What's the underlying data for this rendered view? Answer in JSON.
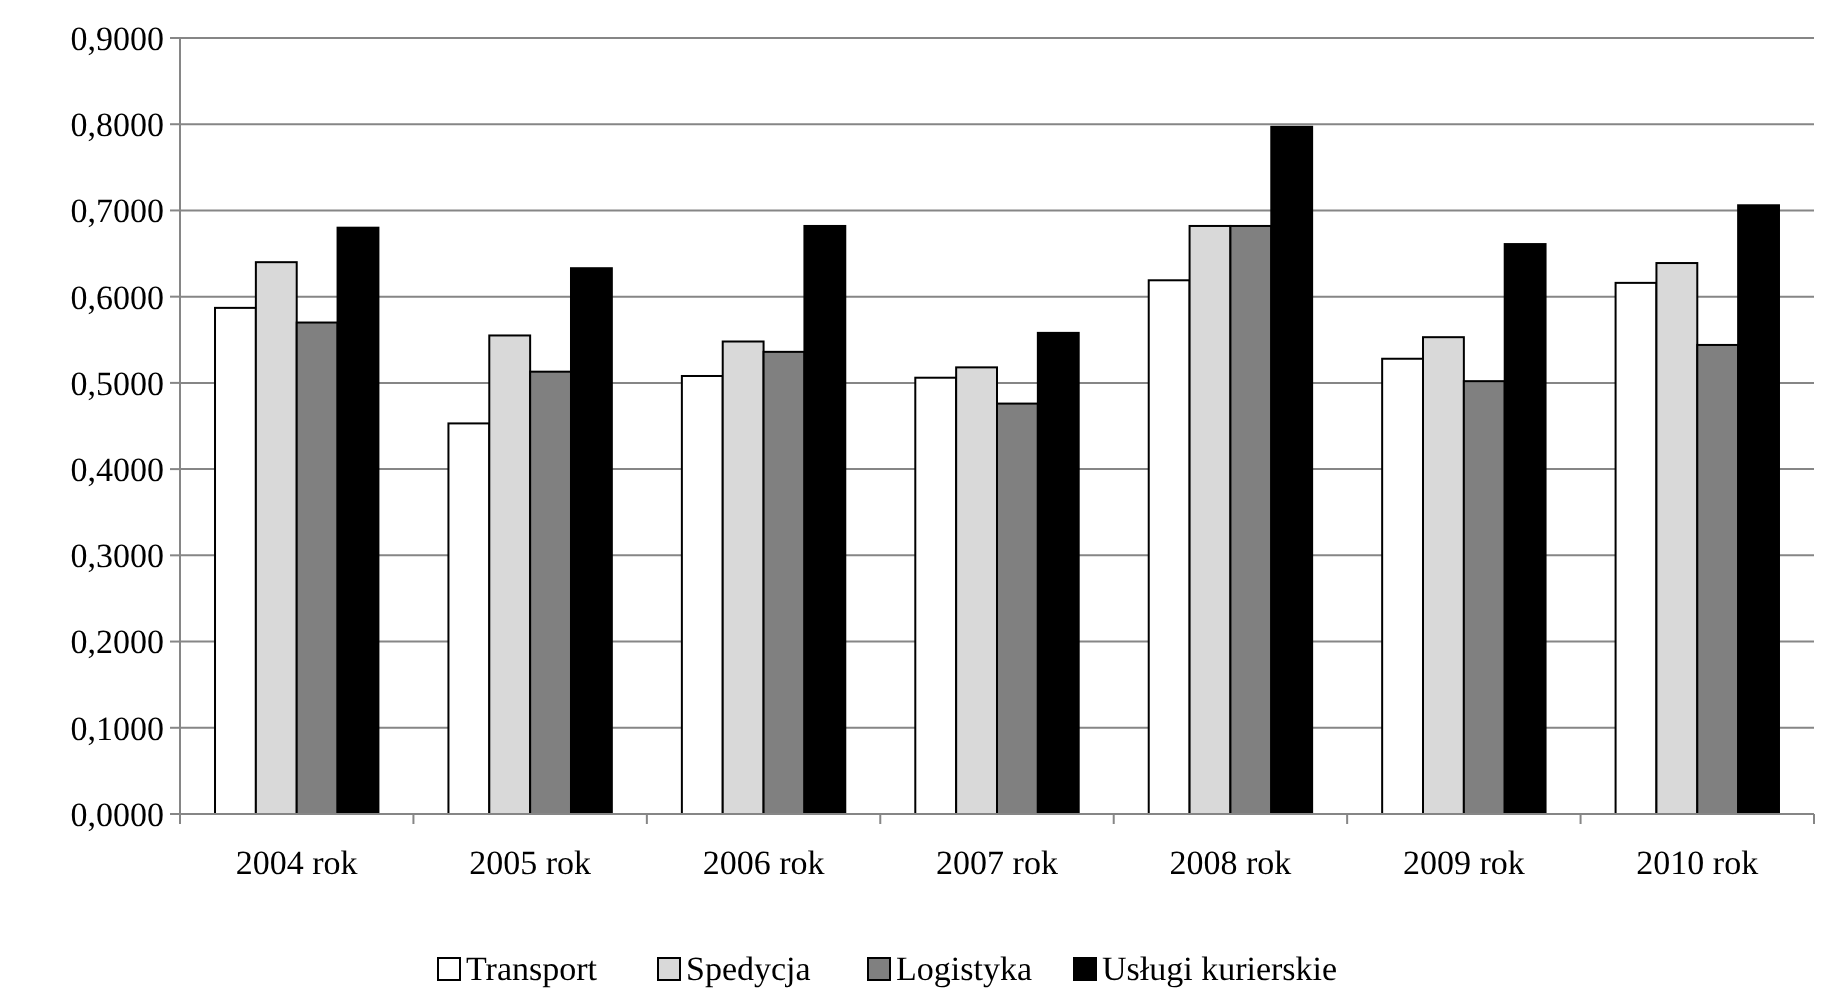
{
  "chart_data": {
    "type": "bar",
    "categories": [
      "2004 rok",
      "2005 rok",
      "2006 rok",
      "2007 rok",
      "2008 rok",
      "2009 rok",
      "2010 rok"
    ],
    "series": [
      {
        "name": "Transport",
        "color": "#ffffff",
        "values": [
          0.587,
          0.453,
          0.508,
          0.506,
          0.619,
          0.528,
          0.616
        ]
      },
      {
        "name": "Spedycja",
        "color": "#d9d9d9",
        "values": [
          0.64,
          0.555,
          0.548,
          0.518,
          0.682,
          0.553,
          0.639
        ]
      },
      {
        "name": "Logistyka",
        "color": "#808080",
        "values": [
          0.57,
          0.513,
          0.536,
          0.476,
          0.682,
          0.502,
          0.544
        ]
      },
      {
        "name": "Usługi kurierskie",
        "color": "#000000",
        "values": [
          0.68,
          0.633,
          0.682,
          0.558,
          0.797,
          0.661,
          0.706
        ]
      }
    ],
    "ylim": [
      0,
      0.9
    ],
    "yticks": [
      {
        "value": 0,
        "label": "0,0000"
      },
      {
        "value": 0.1,
        "label": "0,1000"
      },
      {
        "value": 0.2,
        "label": "0,2000"
      },
      {
        "value": 0.3,
        "label": "0,3000"
      },
      {
        "value": 0.4,
        "label": "0,4000"
      },
      {
        "value": 0.5,
        "label": "0,5000"
      },
      {
        "value": 0.6,
        "label": "0,6000"
      },
      {
        "value": 0.7,
        "label": "0,7000"
      },
      {
        "value": 0.8,
        "label": "0,8000"
      },
      {
        "value": 0.9,
        "label": "0,9000"
      }
    ],
    "grid": "y",
    "legend": "bottom"
  }
}
